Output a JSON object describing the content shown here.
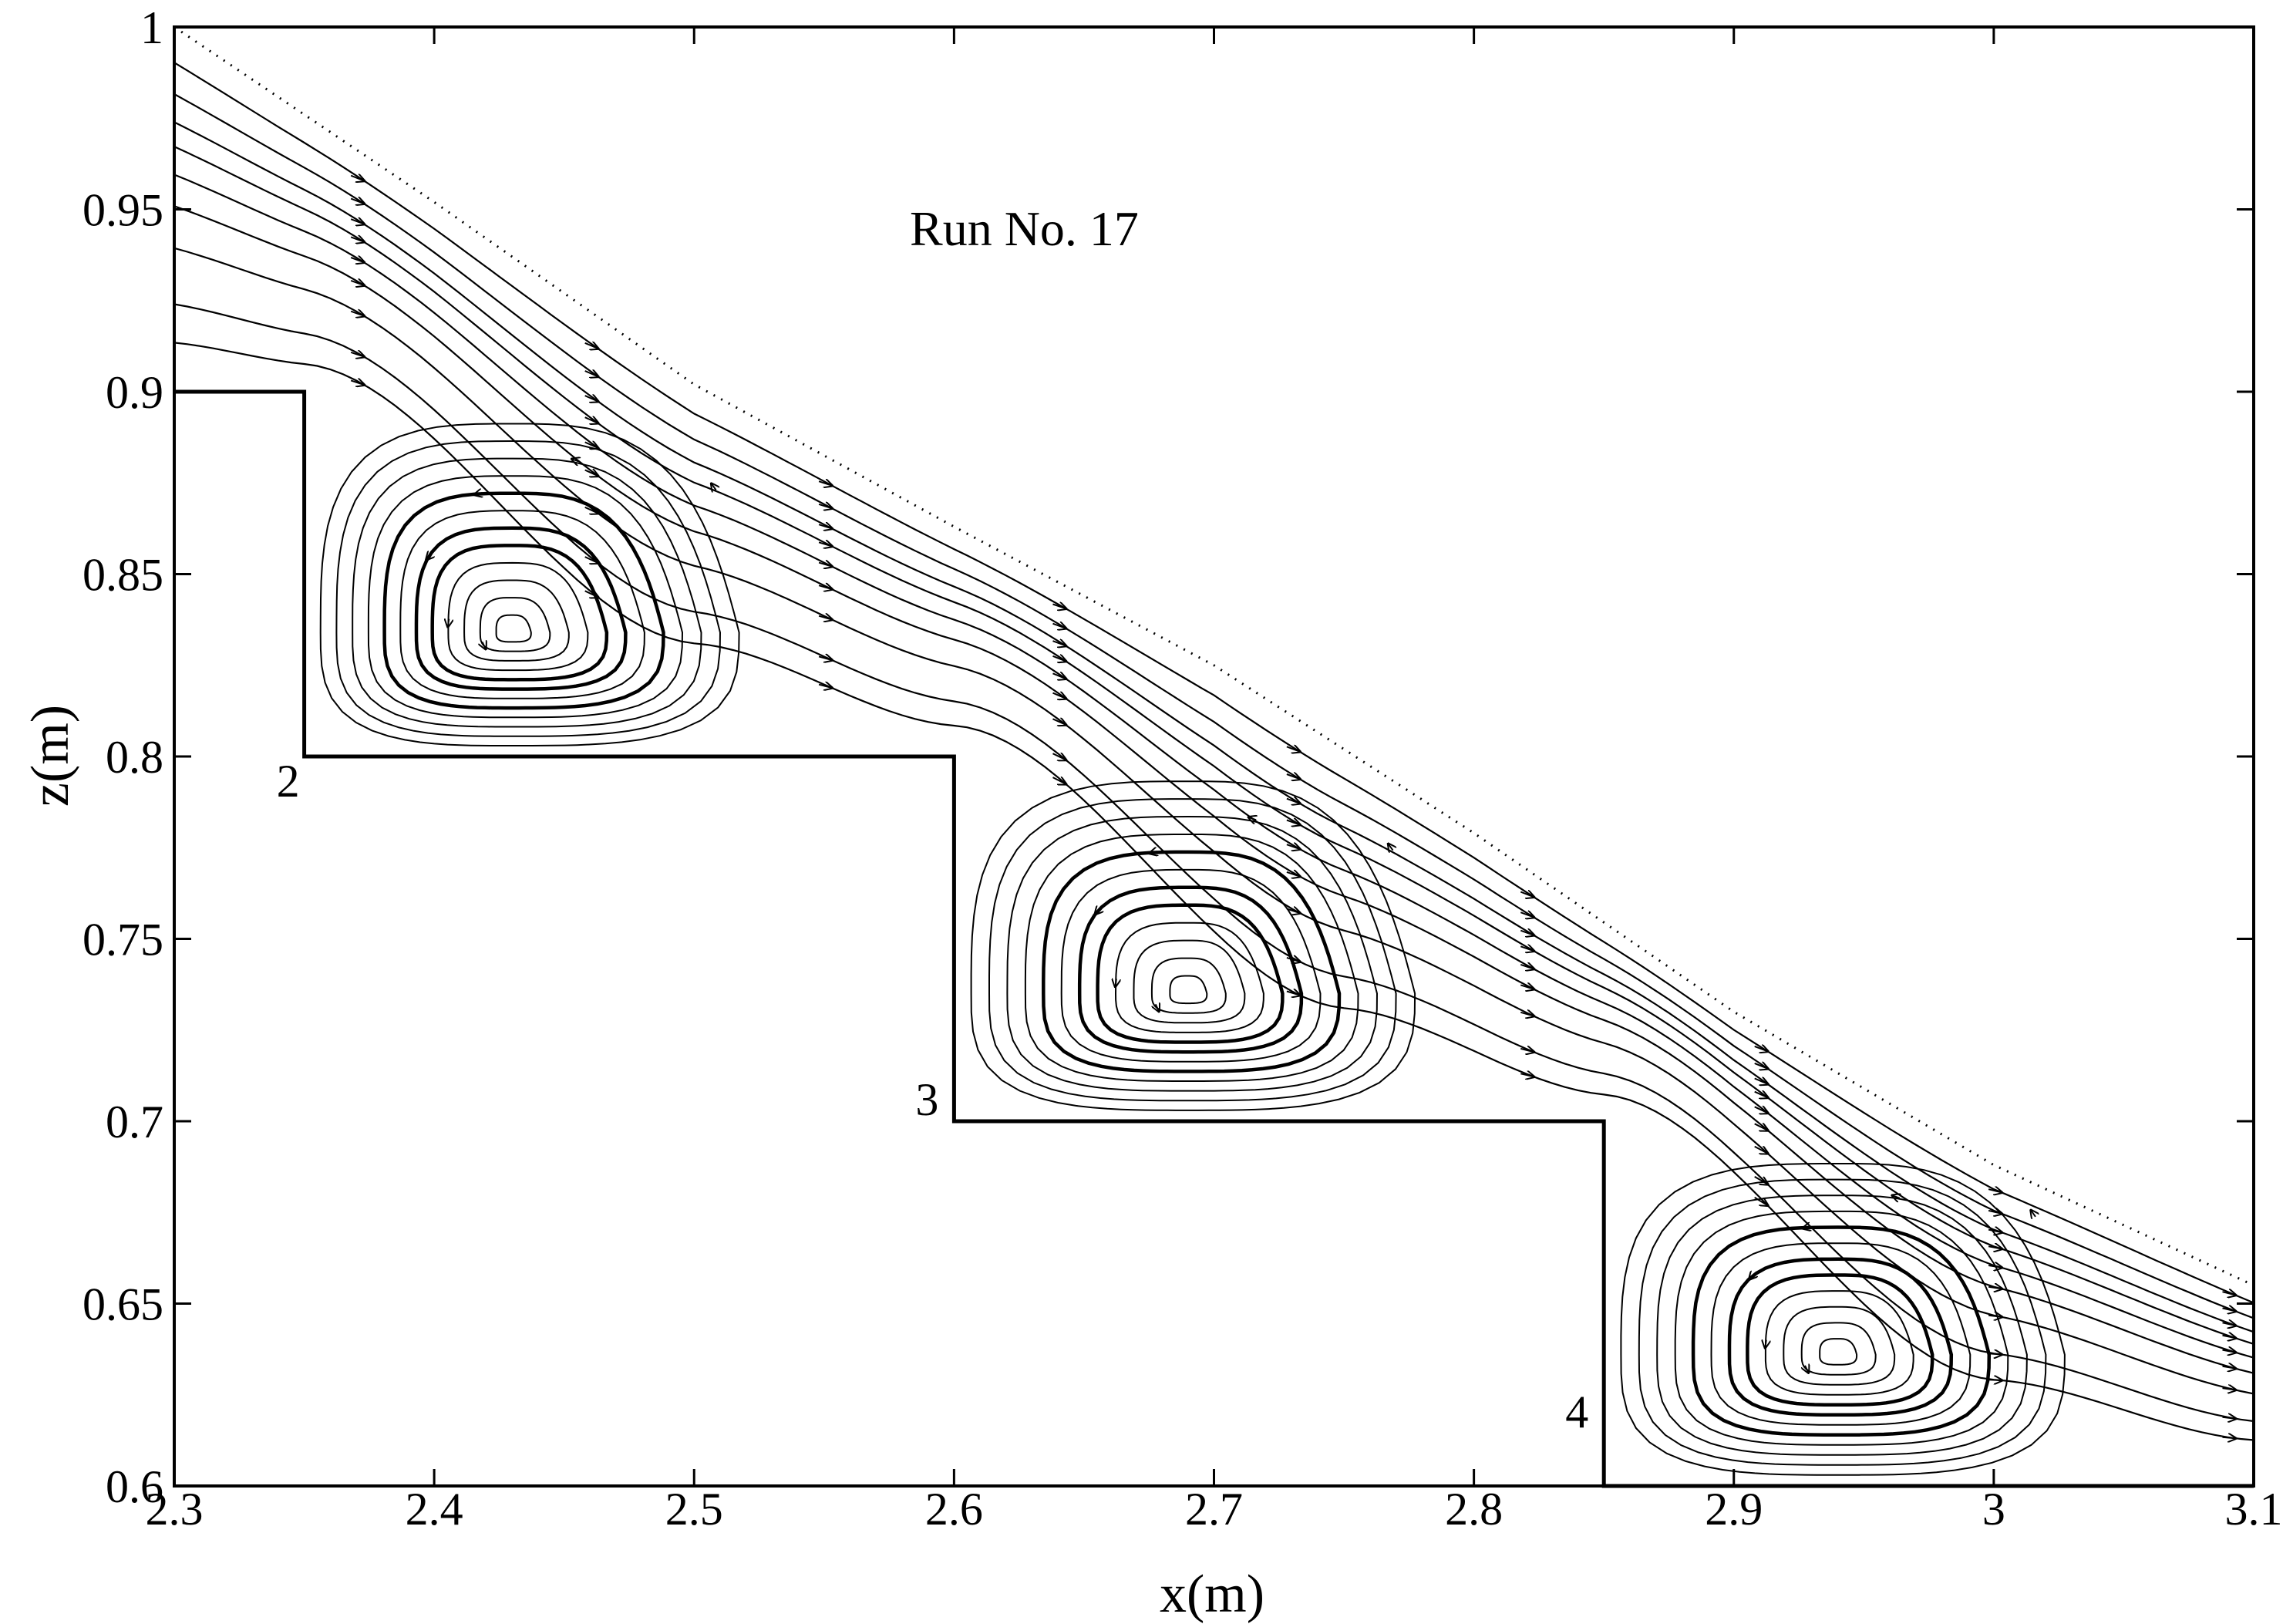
{
  "chart_data": {
    "type": "streamline",
    "title": "",
    "annotation": "Run No. 17",
    "xlabel": "x(m)",
    "ylabel": "z(m)",
    "xlim": [
      2.3,
      3.1
    ],
    "ylim": [
      0.6,
      1.0
    ],
    "xticks": [
      2.3,
      2.4,
      2.5,
      2.6,
      2.7,
      2.8,
      2.9,
      3.0,
      3.1
    ],
    "xtick_labels": [
      "2.3",
      "2.4",
      "2.5",
      "2.6",
      "2.7",
      "2.8",
      "2.9",
      "3",
      "3.1"
    ],
    "yticks": [
      0.6,
      0.65,
      0.7,
      0.75,
      0.8,
      0.85,
      0.9,
      0.95,
      1.0
    ],
    "ytick_labels": [
      "0.6",
      "0.65",
      "0.7",
      "0.75",
      "0.8",
      "0.85",
      "0.9",
      "0.95",
      "1"
    ],
    "step_profile": [
      [
        2.3,
        0.9
      ],
      [
        2.35,
        0.9
      ],
      [
        2.35,
        0.8
      ],
      [
        2.6,
        0.8
      ],
      [
        2.6,
        0.7
      ],
      [
        2.85,
        0.7
      ],
      [
        2.85,
        0.6
      ],
      [
        3.1,
        0.6
      ]
    ],
    "step_labels": [
      {
        "text": "2",
        "x": 2.35,
        "z": 0.8
      },
      {
        "text": "3",
        "x": 2.6,
        "z": 0.7
      },
      {
        "text": "4",
        "x": 2.85,
        "z": 0.6
      }
    ],
    "free_surface": [
      [
        2.3,
        1.0
      ],
      [
        2.4,
        0.952
      ],
      [
        2.5,
        0.902
      ],
      [
        2.6,
        0.863
      ],
      [
        2.7,
        0.825
      ],
      [
        2.8,
        0.779
      ],
      [
        2.9,
        0.73
      ],
      [
        3.0,
        0.688
      ],
      [
        3.1,
        0.655
      ]
    ],
    "vortex_centers": [
      {
        "x": 2.43,
        "z": 0.834
      },
      {
        "x": 2.69,
        "z": 0.735
      },
      {
        "x": 2.94,
        "z": 0.636
      }
    ],
    "streamline_starts_z": [
      0.914,
      0.925,
      0.941,
      0.953,
      0.962,
      0.97,
      0.977,
      0.985,
      0.994
    ]
  }
}
